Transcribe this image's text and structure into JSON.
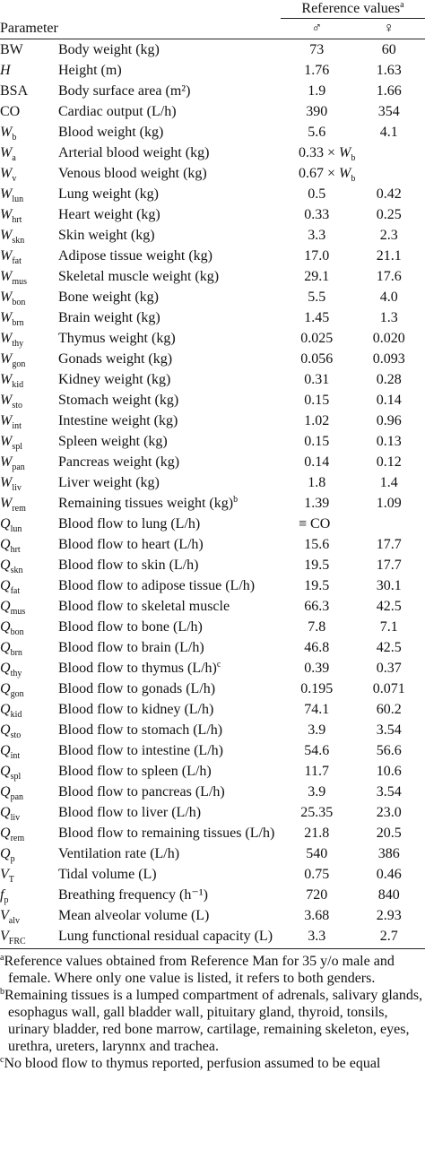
{
  "header": {
    "reference_values": "Reference values",
    "reference_note": "a",
    "parameter": "Parameter",
    "male": "♂",
    "female": "♀"
  },
  "rows": [
    {
      "sym": "BW",
      "desc": "Body weight (kg)",
      "male": "73",
      "female": "60"
    },
    {
      "sym": "H",
      "desc": "Height (m)",
      "male": "1.76",
      "female": "1.63"
    },
    {
      "sym": "BSA",
      "desc": "Body surface area (m²)",
      "male": "1.9",
      "female": "1.66"
    },
    {
      "sym": "CO",
      "desc": "Cardiac output (L/h)",
      "male": "390",
      "female": "354"
    },
    {
      "sym": "W",
      "sub": "b",
      "desc": "Blood weight (kg)",
      "male": "5.6",
      "female": "4.1"
    },
    {
      "sym": "W",
      "sub": "a",
      "desc": "Arterial blood weight (kg)",
      "male": {
        "factor": "0.33 ×",
        "sym": "W",
        "sub": "b"
      }
    },
    {
      "sym": "W",
      "sub": "v",
      "desc": "Venous blood weight (kg)",
      "male": {
        "factor": "0.67 ×",
        "sym": "W",
        "sub": "b"
      }
    },
    {
      "sym": "W",
      "sub": "lun",
      "desc": "Lung weight (kg)",
      "male": "0.5",
      "female": "0.42"
    },
    {
      "sym": "W",
      "sub": "hrt",
      "desc": "Heart weight (kg)",
      "male": "0.33",
      "female": "0.25"
    },
    {
      "sym": "W",
      "sub": "skn",
      "desc": "Skin weight (kg)",
      "male": "3.3",
      "female": "2.3"
    },
    {
      "sym": "W",
      "sub": "fat",
      "desc": "Adipose tissue weight (kg)",
      "male": "17.0",
      "female": "21.1"
    },
    {
      "sym": "W",
      "sub": "mus",
      "desc": "Skeletal muscle weight (kg)",
      "male": "29.1",
      "female": "17.6"
    },
    {
      "sym": "W",
      "sub": "bon",
      "desc": "Bone weight (kg)",
      "male": "5.5",
      "female": "4.0"
    },
    {
      "sym": "W",
      "sub": "brn",
      "desc": "Brain weight (kg)",
      "male": "1.45",
      "female": "1.3"
    },
    {
      "sym": "W",
      "sub": "thy",
      "desc": "Thymus weight (kg)",
      "male": "0.025",
      "female": "0.020"
    },
    {
      "sym": "W",
      "sub": "gon",
      "desc": "Gonads weight (kg)",
      "male": "0.056",
      "female": "0.093"
    },
    {
      "sym": "W",
      "sub": "kid",
      "desc": "Kidney weight (kg)",
      "male": "0.31",
      "female": "0.28"
    },
    {
      "sym": "W",
      "sub": "sto",
      "desc": "Stomach weight (kg)",
      "male": "0.15",
      "female": "0.14"
    },
    {
      "sym": "W",
      "sub": "int",
      "desc": "Intestine weight (kg)",
      "male": "1.02",
      "female": "0.96"
    },
    {
      "sym": "W",
      "sub": "spl",
      "desc": "Spleen weight (kg)",
      "male": "0.15",
      "female": "0.13"
    },
    {
      "sym": "W",
      "sub": "pan",
      "desc": "Pancreas weight (kg)",
      "male": "0.14",
      "female": "0.12"
    },
    {
      "sym": "W",
      "sub": "liv",
      "desc": "Liver weight (kg)",
      "male": "1.8",
      "female": "1.4"
    },
    {
      "sym": "W",
      "sub": "rem",
      "desc": "Remaining tissues weight (kg)",
      "note": "b",
      "male": "1.39",
      "female": "1.09"
    },
    {
      "sym": "Q",
      "sub": "lun",
      "desc": "Blood flow to lung (L/h)",
      "male": "≡ CO"
    },
    {
      "sym": "Q",
      "sub": "hrt",
      "desc": "Blood flow to heart (L/h)",
      "male": "15.6",
      "female": "17.7"
    },
    {
      "sym": "Q",
      "sub": "skn",
      "desc": "Blood flow to skin (L/h)",
      "male": "19.5",
      "female": "17.7"
    },
    {
      "sym": "Q",
      "sub": "fat",
      "desc": "Blood flow to adipose tissue (L/h)",
      "male": "19.5",
      "female": "30.1"
    },
    {
      "sym": "Q",
      "sub": "mus",
      "desc": "Blood flow to skeletal muscle",
      "male": "66.3",
      "female": "42.5"
    },
    {
      "sym": "Q",
      "sub": "bon",
      "desc": "Blood flow to bone (L/h)",
      "male": "7.8",
      "female": "7.1"
    },
    {
      "sym": "Q",
      "sub": "brn",
      "desc": "Blood flow to brain (L/h)",
      "male": "46.8",
      "female": "42.5"
    },
    {
      "sym": "Q",
      "sub": "thy",
      "desc": "Blood flow to thymus (L/h)",
      "note": "c",
      "male": "0.39",
      "female": "0.37"
    },
    {
      "sym": "Q",
      "sub": "gon",
      "desc": "Blood flow to gonads (L/h)",
      "male": "0.195",
      "female": "0.071"
    },
    {
      "sym": "Q",
      "sub": "kid",
      "desc": "Blood flow to kidney (L/h)",
      "male": "74.1",
      "female": "60.2"
    },
    {
      "sym": "Q",
      "sub": "sto",
      "desc": "Blood flow to stomach (L/h)",
      "male": "3.9",
      "female": "3.54"
    },
    {
      "sym": "Q",
      "sub": "int",
      "desc": "Blood flow to intestine (L/h)",
      "male": "54.6",
      "female": "56.6"
    },
    {
      "sym": "Q",
      "sub": "spl",
      "desc": "Blood flow to spleen (L/h)",
      "male": "11.7",
      "female": "10.6"
    },
    {
      "sym": "Q",
      "sub": "pan",
      "desc": "Blood flow to pancreas (L/h)",
      "male": "3.9",
      "female": "3.54"
    },
    {
      "sym": "Q",
      "sub": "liv",
      "desc": "Blood flow to liver (L/h)",
      "male": "25.35",
      "female": "23.0"
    },
    {
      "sym": "Q",
      "sub": "rem",
      "desc": "Blood flow to remaining tissues (L/h)",
      "male": "21.8",
      "female": "20.5"
    },
    {
      "sym": "Q",
      "sub": "p",
      "desc": "Ventilation rate (L/h)",
      "male": "540",
      "female": "386"
    },
    {
      "sym": "V",
      "sub": "T",
      "desc": "Tidal volume (L)",
      "male": "0.75",
      "female": "0.46"
    },
    {
      "sym": "f",
      "sub": "p",
      "desc": "Breathing frequency (h⁻¹)",
      "male": "720",
      "female": "840"
    },
    {
      "sym": "V",
      "sub": "alv",
      "desc": "Mean alveolar volume (L)",
      "male": "3.68",
      "female": "2.93"
    },
    {
      "sym": "V",
      "sub": "FRC",
      "desc": "Lung functional residual capacity (L)",
      "male": "3.3",
      "female": "2.7"
    }
  ],
  "footnotes": [
    {
      "mark": "a",
      "text": "Reference values obtained from Reference Man for 35 y/o male and female. Where only one value is listed, it refers to both genders."
    },
    {
      "mark": "b",
      "text": "Remaining tissues is a lumped compartment of adrenals, salivary glands, esophagus wall, gall bladder wall, pituitary gland, thyroid, tonsils, urinary bladder, red bone marrow, cartilage, remaining skeleton, eyes, urethra, ureters, larynnx and trachea."
    },
    {
      "mark": "c",
      "text": "No blood flow to thymus reported, perfusion assumed to be equal"
    }
  ]
}
